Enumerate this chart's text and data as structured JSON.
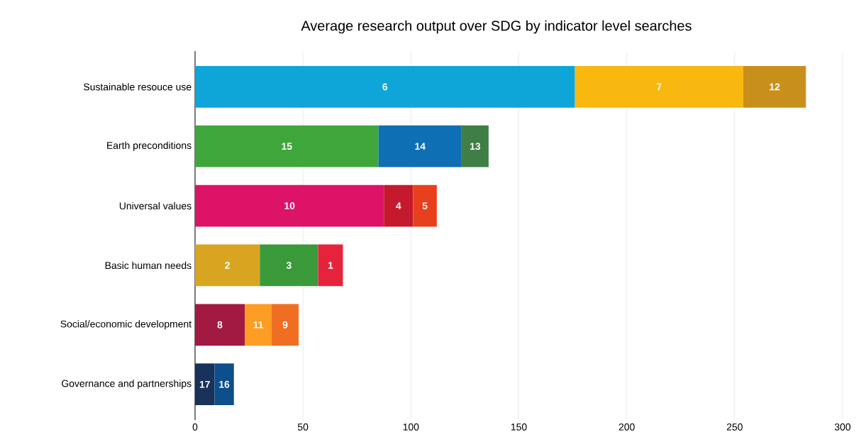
{
  "chart_data": {
    "type": "bar",
    "orientation": "horizontal",
    "stacked": true,
    "title": "Average research output over SDG by indicator level searches",
    "categories": [
      "Sustainable resouce use",
      "Earth preconditions",
      "Universal values",
      "Basic human needs",
      "Social/economic development",
      "Governance and partnerships"
    ],
    "series": [
      {
        "name": "6",
        "color": "#0ea5d8",
        "values": [
          176,
          null,
          null,
          null,
          null,
          null
        ]
      },
      {
        "name": "7",
        "color": "#f9b80f",
        "values": [
          78,
          null,
          null,
          null,
          null,
          null
        ]
      },
      {
        "name": "12",
        "color": "#c98f1b",
        "values": [
          29,
          null,
          null,
          null,
          null,
          null
        ]
      },
      {
        "name": "15",
        "color": "#3fa63c",
        "values": [
          null,
          85,
          null,
          null,
          null,
          null
        ]
      },
      {
        "name": "14",
        "color": "#0e6fb5",
        "values": [
          null,
          38.5,
          null,
          null,
          null,
          null
        ]
      },
      {
        "name": "13",
        "color": "#3f7e44",
        "values": [
          null,
          12.5,
          null,
          null,
          null,
          null
        ]
      },
      {
        "name": "10",
        "color": "#dd1367",
        "values": [
          null,
          null,
          87.5,
          null,
          null,
          null
        ]
      },
      {
        "name": "4",
        "color": "#c5192d",
        "values": [
          null,
          null,
          13.5,
          null,
          null,
          null
        ]
      },
      {
        "name": "5",
        "color": "#e8401c",
        "values": [
          null,
          null,
          11,
          null,
          null,
          null
        ]
      },
      {
        "name": "2",
        "color": "#d9a520",
        "values": [
          null,
          null,
          null,
          30,
          null,
          null
        ]
      },
      {
        "name": "3",
        "color": "#3a9a3a",
        "values": [
          null,
          null,
          null,
          27,
          null,
          null
        ]
      },
      {
        "name": "1",
        "color": "#e5243b",
        "values": [
          null,
          null,
          null,
          11.5,
          null,
          null
        ]
      },
      {
        "name": "8",
        "color": "#a21942",
        "values": [
          null,
          null,
          null,
          null,
          23,
          null
        ]
      },
      {
        "name": "11",
        "color": "#fd9d24",
        "values": [
          null,
          null,
          null,
          null,
          12.5,
          null
        ]
      },
      {
        "name": "9",
        "color": "#f06e22",
        "values": [
          null,
          null,
          null,
          null,
          12.5,
          null
        ]
      },
      {
        "name": "17",
        "color": "#19325a",
        "values": [
          null,
          null,
          null,
          null,
          null,
          9
        ]
      },
      {
        "name": "16",
        "color": "#0d4f8b",
        "values": [
          null,
          null,
          null,
          null,
          null,
          9
        ]
      }
    ],
    "xlim": [
      0,
      300
    ],
    "xticks": [
      0,
      50,
      100,
      150,
      200,
      250,
      300
    ],
    "grid": "x"
  }
}
